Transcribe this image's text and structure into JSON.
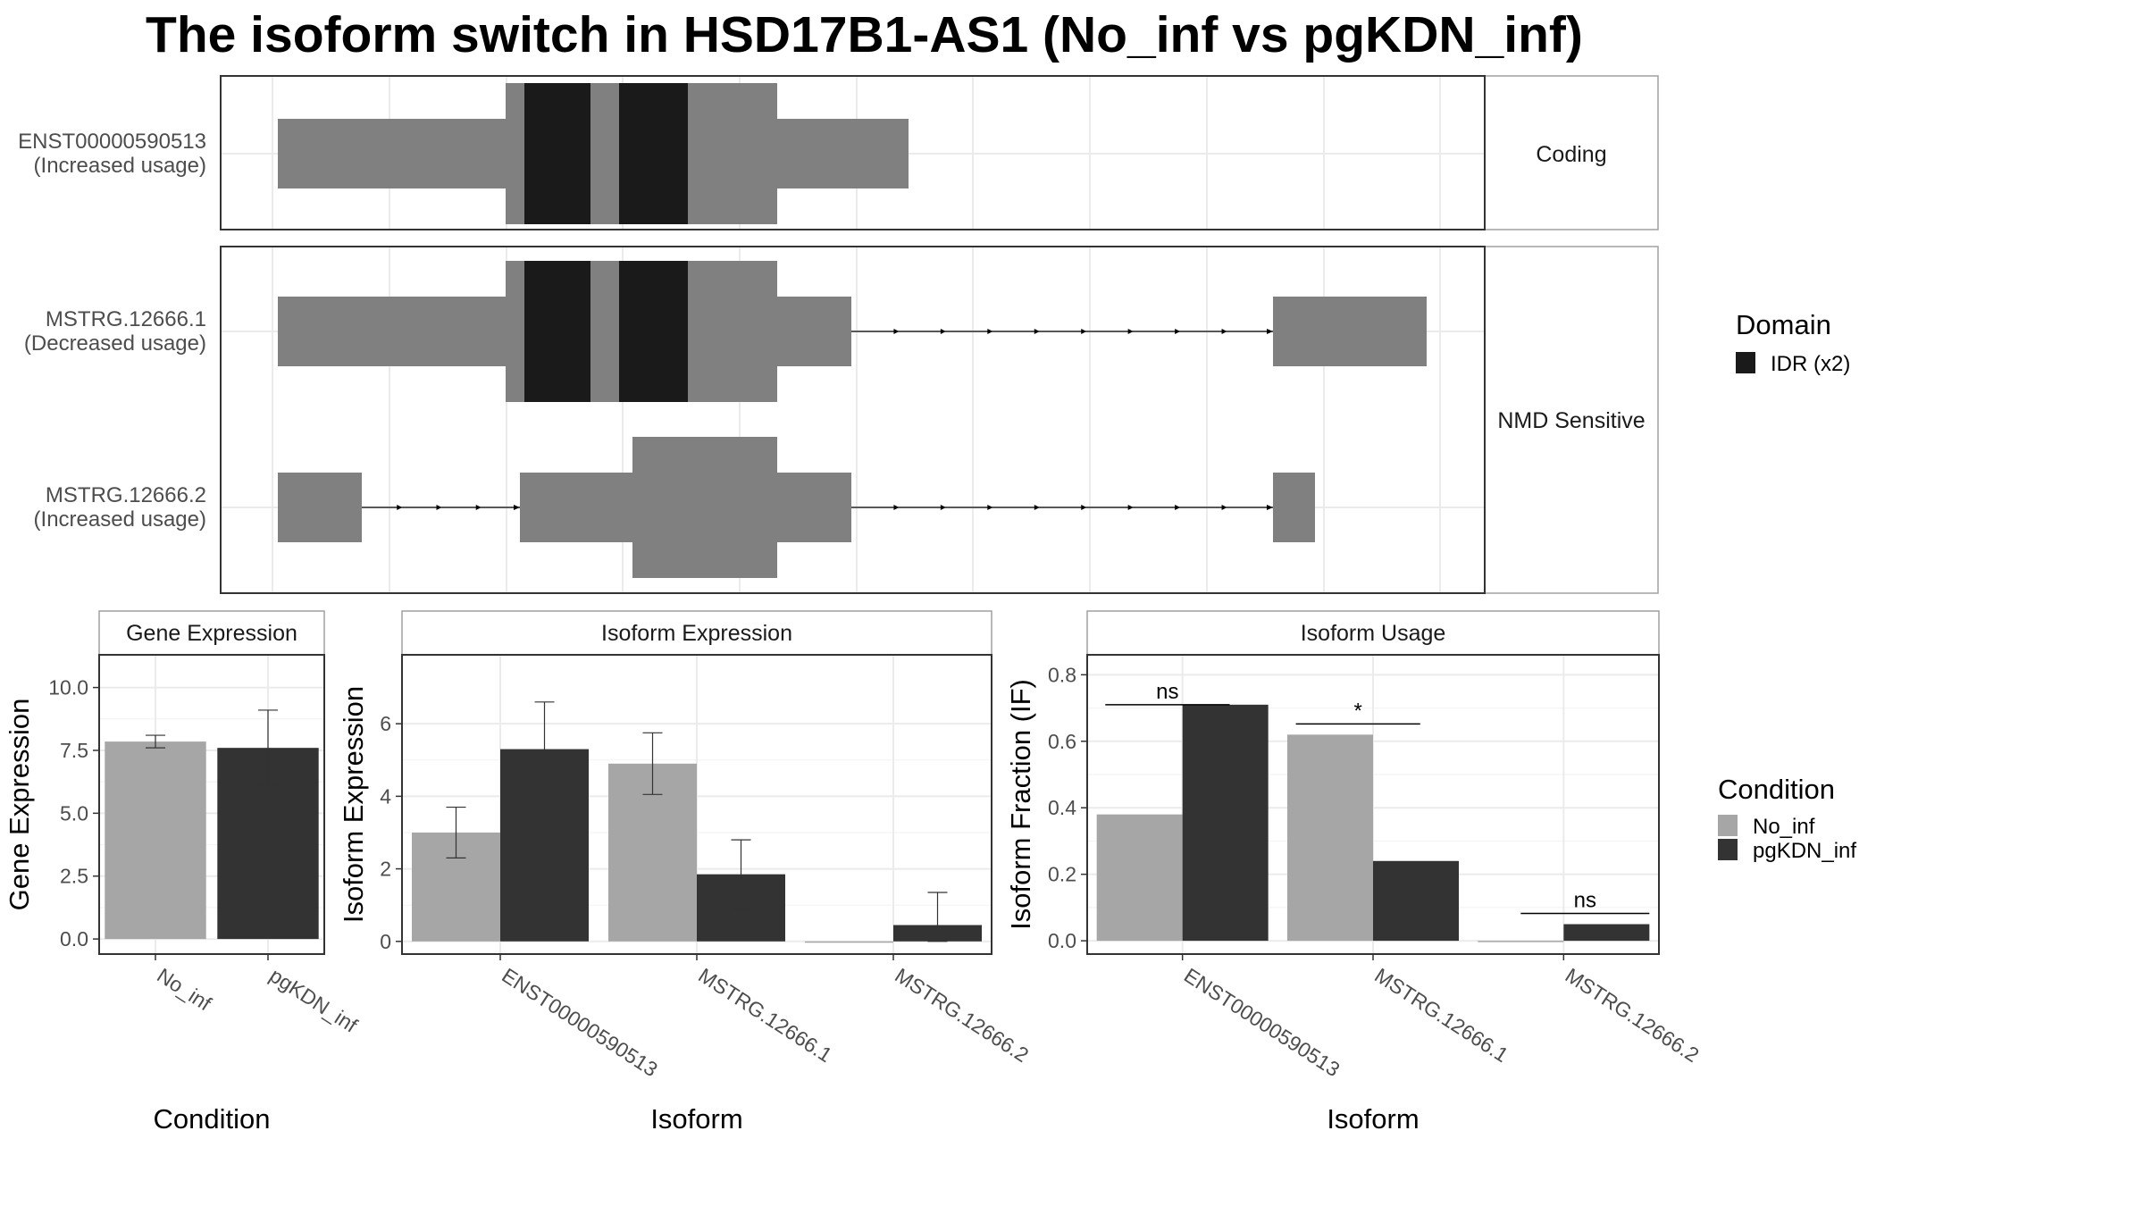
{
  "title": "The isoform switch in HSD17B1-AS1 (No_inf vs pgKDN_inf)",
  "colors": {
    "exon": "#808080",
    "domain": "#1a1a1a",
    "no_inf": "#a6a6a6",
    "pgkdn_inf": "#333333",
    "panel_border": "#333333",
    "strip_border": "#a0a0a0",
    "grid": "#ebebeb"
  },
  "structure": {
    "groups": [
      {
        "label": "Coding",
        "rows": [
          {
            "id": "ENST00000590513",
            "usage": "(Increased usage)"
          }
        ]
      },
      {
        "label": "NMD Sensitive",
        "rows": [
          {
            "id": "MSTRG.12666.1",
            "usage": "(Decreased usage)"
          },
          {
            "id": "MSTRG.12666.2",
            "usage": "(Increased usage)"
          }
        ]
      }
    ],
    "domain_legend": {
      "title": "Domain",
      "items": [
        {
          "label": "IDR (x2)",
          "color": "#1a1a1a"
        }
      ]
    }
  },
  "chart_data": [
    {
      "type": "bar",
      "title": "Gene Expression",
      "xlabel": "Condition",
      "ylabel": "Gene Expression",
      "categories": [
        "No_inf",
        "pgKDN_inf"
      ],
      "values": [
        7.85,
        7.6
      ],
      "errors": [
        [
          7.6,
          8.1
        ],
        [
          6.1,
          9.1
        ]
      ],
      "ylim": [
        -0.6,
        11.3
      ],
      "yticks": [
        "0.0",
        "2.5",
        "5.0",
        "7.5",
        "10.0"
      ],
      "grid": true
    },
    {
      "type": "bar",
      "title": "Isoform Expression",
      "xlabel": "Isoform",
      "ylabel": "Isoform Expression",
      "categories": [
        "ENST00000590513",
        "MSTRG.12666.1",
        "MSTRG.12666.2"
      ],
      "series": [
        {
          "name": "No_inf",
          "values": [
            3.0,
            4.9,
            0.0
          ],
          "errors": [
            [
              2.3,
              3.7
            ],
            [
              4.05,
              5.75
            ],
            [
              0,
              0
            ]
          ]
        },
        {
          "name": "pgKDN_inf",
          "values": [
            5.3,
            1.85,
            0.45
          ],
          "errors": [
            [
              3.95,
              6.6
            ],
            [
              0.9,
              2.8
            ],
            [
              0,
              1.35
            ]
          ]
        }
      ],
      "ylim": [
        -0.35,
        7.9
      ],
      "yticks": [
        "0",
        "2",
        "4",
        "6"
      ],
      "grid": true
    },
    {
      "type": "bar",
      "title": "Isoform Usage",
      "xlabel": "Isoform",
      "ylabel": "Isoform Fraction (IF)",
      "categories": [
        "ENST00000590513",
        "MSTRG.12666.1",
        "MSTRG.12666.2"
      ],
      "series": [
        {
          "name": "No_inf",
          "values": [
            0.38,
            0.62,
            0.0
          ]
        },
        {
          "name": "pgKDN_inf",
          "values": [
            0.71,
            0.24,
            0.05
          ]
        }
      ],
      "significance": [
        "ns",
        "*",
        "ns"
      ],
      "ylim": [
        -0.04,
        0.86
      ],
      "yticks": [
        "0.0",
        "0.2",
        "0.4",
        "0.6",
        "0.8"
      ],
      "grid": true
    }
  ],
  "condition_legend": {
    "title": "Condition",
    "items": [
      {
        "label": "No_inf",
        "color": "#a6a6a6"
      },
      {
        "label": "pgKDN_inf",
        "color": "#333333"
      }
    ]
  }
}
